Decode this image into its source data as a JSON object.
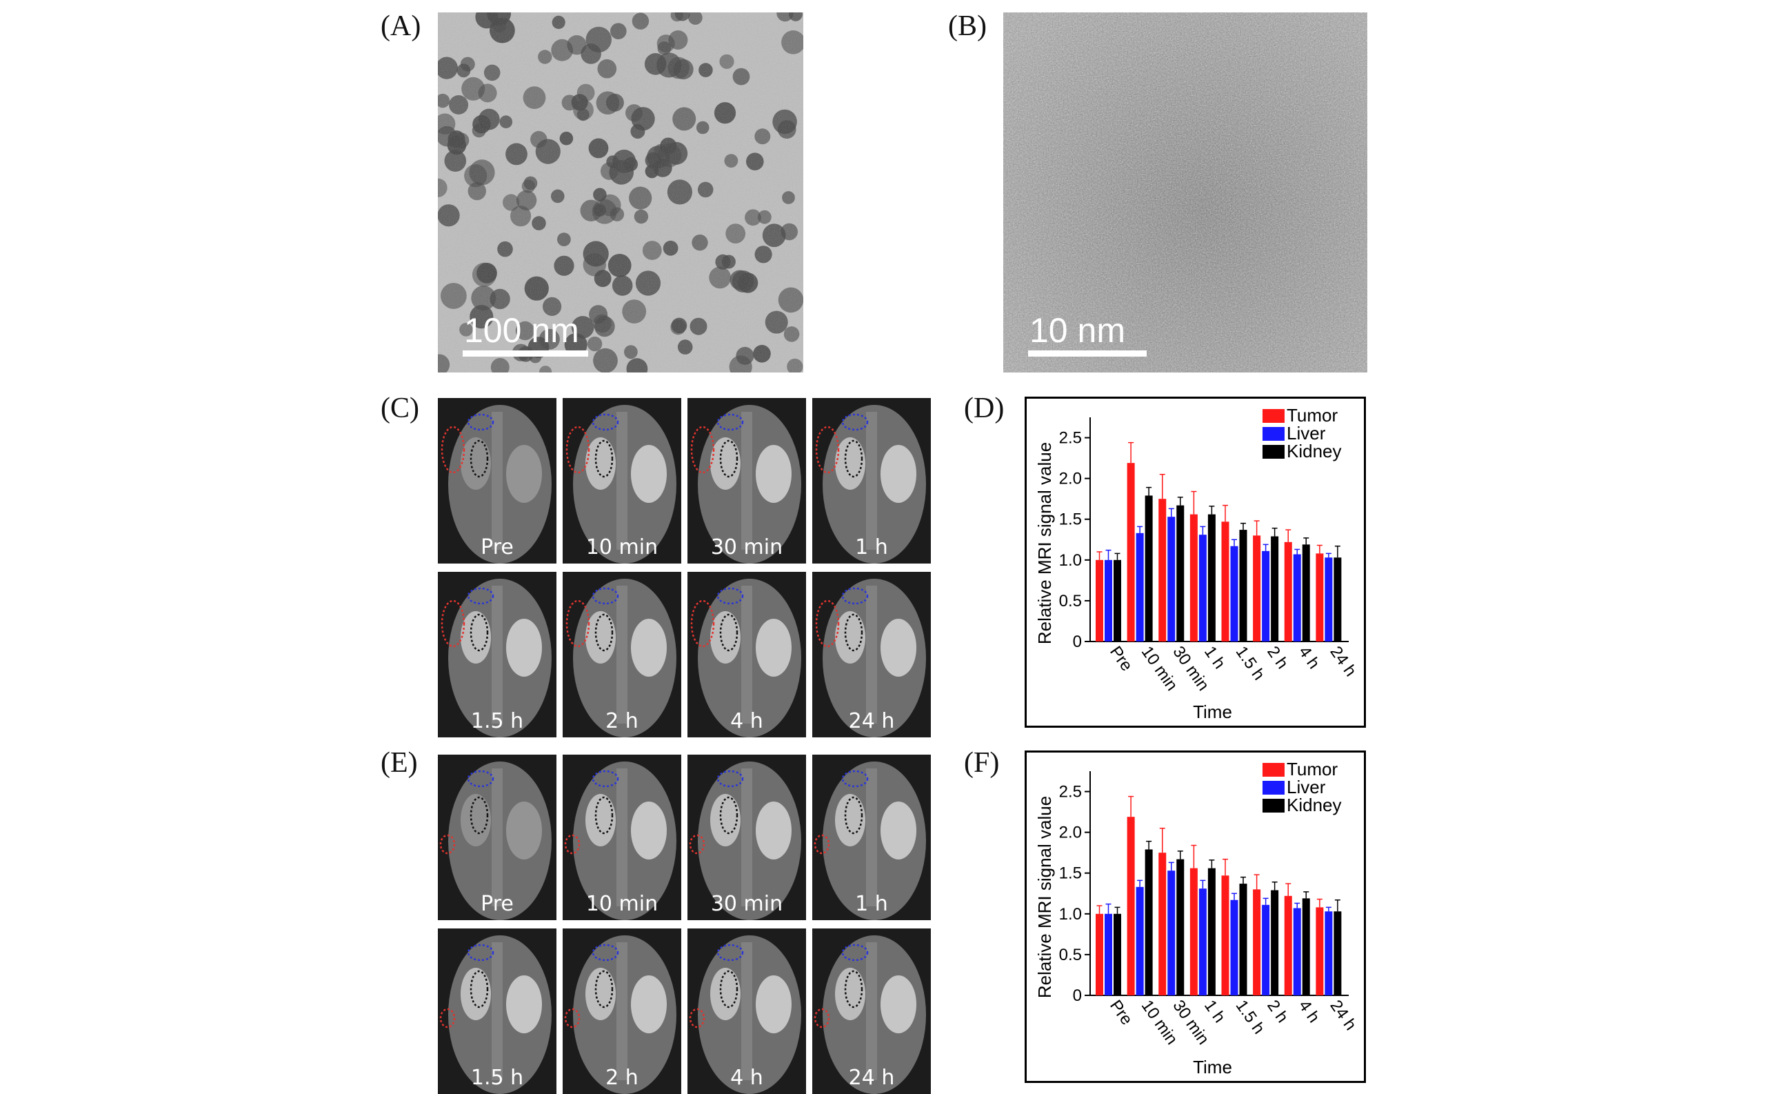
{
  "figure": {
    "panels": {
      "A": {
        "label": "(A)",
        "scale_text": "100 nm"
      },
      "B": {
        "label": "(B)",
        "scale_text": "10 nm"
      },
      "C": {
        "label": "(C)",
        "time_labels": [
          "Pre",
          "10 min",
          "30 min",
          "1 h",
          "1.5 h",
          "2 h",
          "4 h",
          "24 h"
        ]
      },
      "D": {
        "label": "(D)"
      },
      "E": {
        "label": "(E)",
        "time_labels": [
          "Pre",
          "10 min",
          "30 min",
          "1 h",
          "1.5 h",
          "2 h",
          "4 h",
          "24 h"
        ]
      },
      "F": {
        "label": "(F)"
      }
    },
    "roi_colors": {
      "tumor": "#e0342f",
      "liver": "#2b36d6",
      "kidney": "#111111"
    }
  },
  "chart_data": [
    {
      "panel": "D",
      "type": "bar",
      "xlabel": "Time",
      "ylabel": "Relative MRI signal value",
      "ylim": [
        0,
        2.75
      ],
      "yticks": [
        "0",
        "0.5",
        "1.0",
        "1.5",
        "2.0",
        "2.5"
      ],
      "categories": [
        "Pre",
        "10 min",
        "30 min",
        "1 h",
        "1.5 h",
        "2 h",
        "4 h",
        "24 h"
      ],
      "legend_position": "top-right",
      "series": [
        {
          "name": "Tumor",
          "color": "#ff1a1a",
          "values": [
            1.0,
            2.19,
            1.75,
            1.56,
            1.47,
            1.3,
            1.22,
            1.08
          ],
          "errors": [
            0.1,
            0.25,
            0.3,
            0.28,
            0.2,
            0.18,
            0.15,
            0.1
          ]
        },
        {
          "name": "Liver",
          "color": "#1a1aff",
          "values": [
            1.0,
            1.33,
            1.53,
            1.31,
            1.17,
            1.11,
            1.07,
            1.03
          ],
          "errors": [
            0.12,
            0.08,
            0.1,
            0.1,
            0.08,
            0.08,
            0.06,
            0.05
          ]
        },
        {
          "name": "Kidney",
          "color": "#000000",
          "values": [
            1.0,
            1.79,
            1.67,
            1.56,
            1.37,
            1.29,
            1.19,
            1.03
          ],
          "errors": [
            0.08,
            0.1,
            0.1,
            0.1,
            0.08,
            0.1,
            0.08,
            0.14
          ]
        }
      ]
    },
    {
      "panel": "F",
      "type": "bar",
      "xlabel": "Time",
      "ylabel": "Relative MRI signal value",
      "ylim": [
        0,
        2.75
      ],
      "yticks": [
        "0",
        "0.5",
        "1.0",
        "1.5",
        "2.0",
        "2.5"
      ],
      "categories": [
        "Pre",
        "10 min",
        "30 min",
        "1 h",
        "1.5 h",
        "2 h",
        "4 h",
        "24 h"
      ],
      "legend_position": "top-right",
      "series": [
        {
          "name": "Tumor",
          "color": "#ff1a1a",
          "values": [
            1.0,
            2.19,
            1.75,
            1.56,
            1.47,
            1.3,
            1.22,
            1.08
          ],
          "errors": [
            0.1,
            0.25,
            0.3,
            0.28,
            0.2,
            0.18,
            0.15,
            0.1
          ]
        },
        {
          "name": "Liver",
          "color": "#1a1aff",
          "values": [
            1.0,
            1.33,
            1.53,
            1.31,
            1.17,
            1.11,
            1.07,
            1.03
          ],
          "errors": [
            0.12,
            0.08,
            0.1,
            0.1,
            0.08,
            0.08,
            0.06,
            0.05
          ]
        },
        {
          "name": "Kidney",
          "color": "#000000",
          "values": [
            1.0,
            1.79,
            1.67,
            1.56,
            1.37,
            1.29,
            1.19,
            1.03
          ],
          "errors": [
            0.08,
            0.1,
            0.1,
            0.1,
            0.08,
            0.1,
            0.08,
            0.14
          ]
        }
      ]
    }
  ]
}
